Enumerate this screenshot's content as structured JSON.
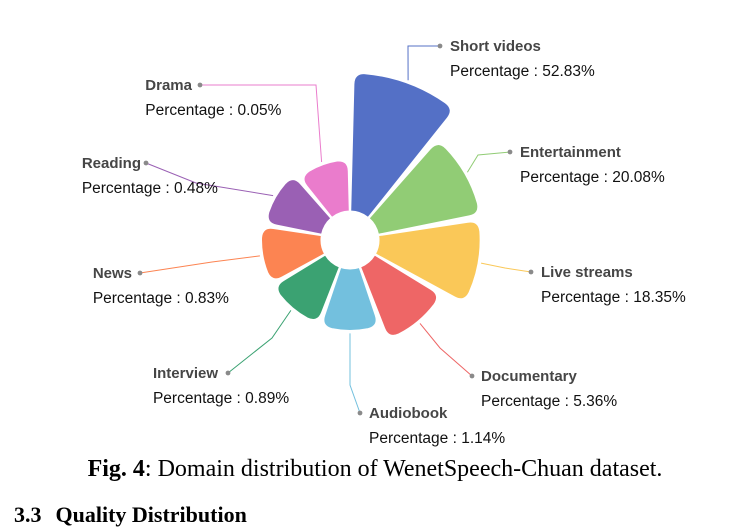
{
  "chart_data": {
    "type": "pie",
    "variant": "nightingale-rose",
    "categories": [
      "Short videos",
      "Entertainment",
      "Live streams",
      "Documentary",
      "Audiobook",
      "Interview",
      "News",
      "Reading",
      "Drama"
    ],
    "values": [
      52.83,
      20.08,
      18.35,
      5.36,
      1.14,
      0.89,
      0.83,
      0.48,
      0.05
    ],
    "value_prefix": "Percentage : ",
    "value_suffix": "%",
    "colors": [
      "#5470c6",
      "#91cc75",
      "#fac858",
      "#ee6666",
      "#73c0de",
      "#3ba272",
      "#fc8452",
      "#9a60b4",
      "#ea7ccc"
    ]
  },
  "caption": {
    "label": "Fig. 4",
    "text": ": Domain distribution of WenetSpeech-Chuan dataset."
  },
  "section": {
    "number": "3.3",
    "title": "Quality Distribution"
  }
}
